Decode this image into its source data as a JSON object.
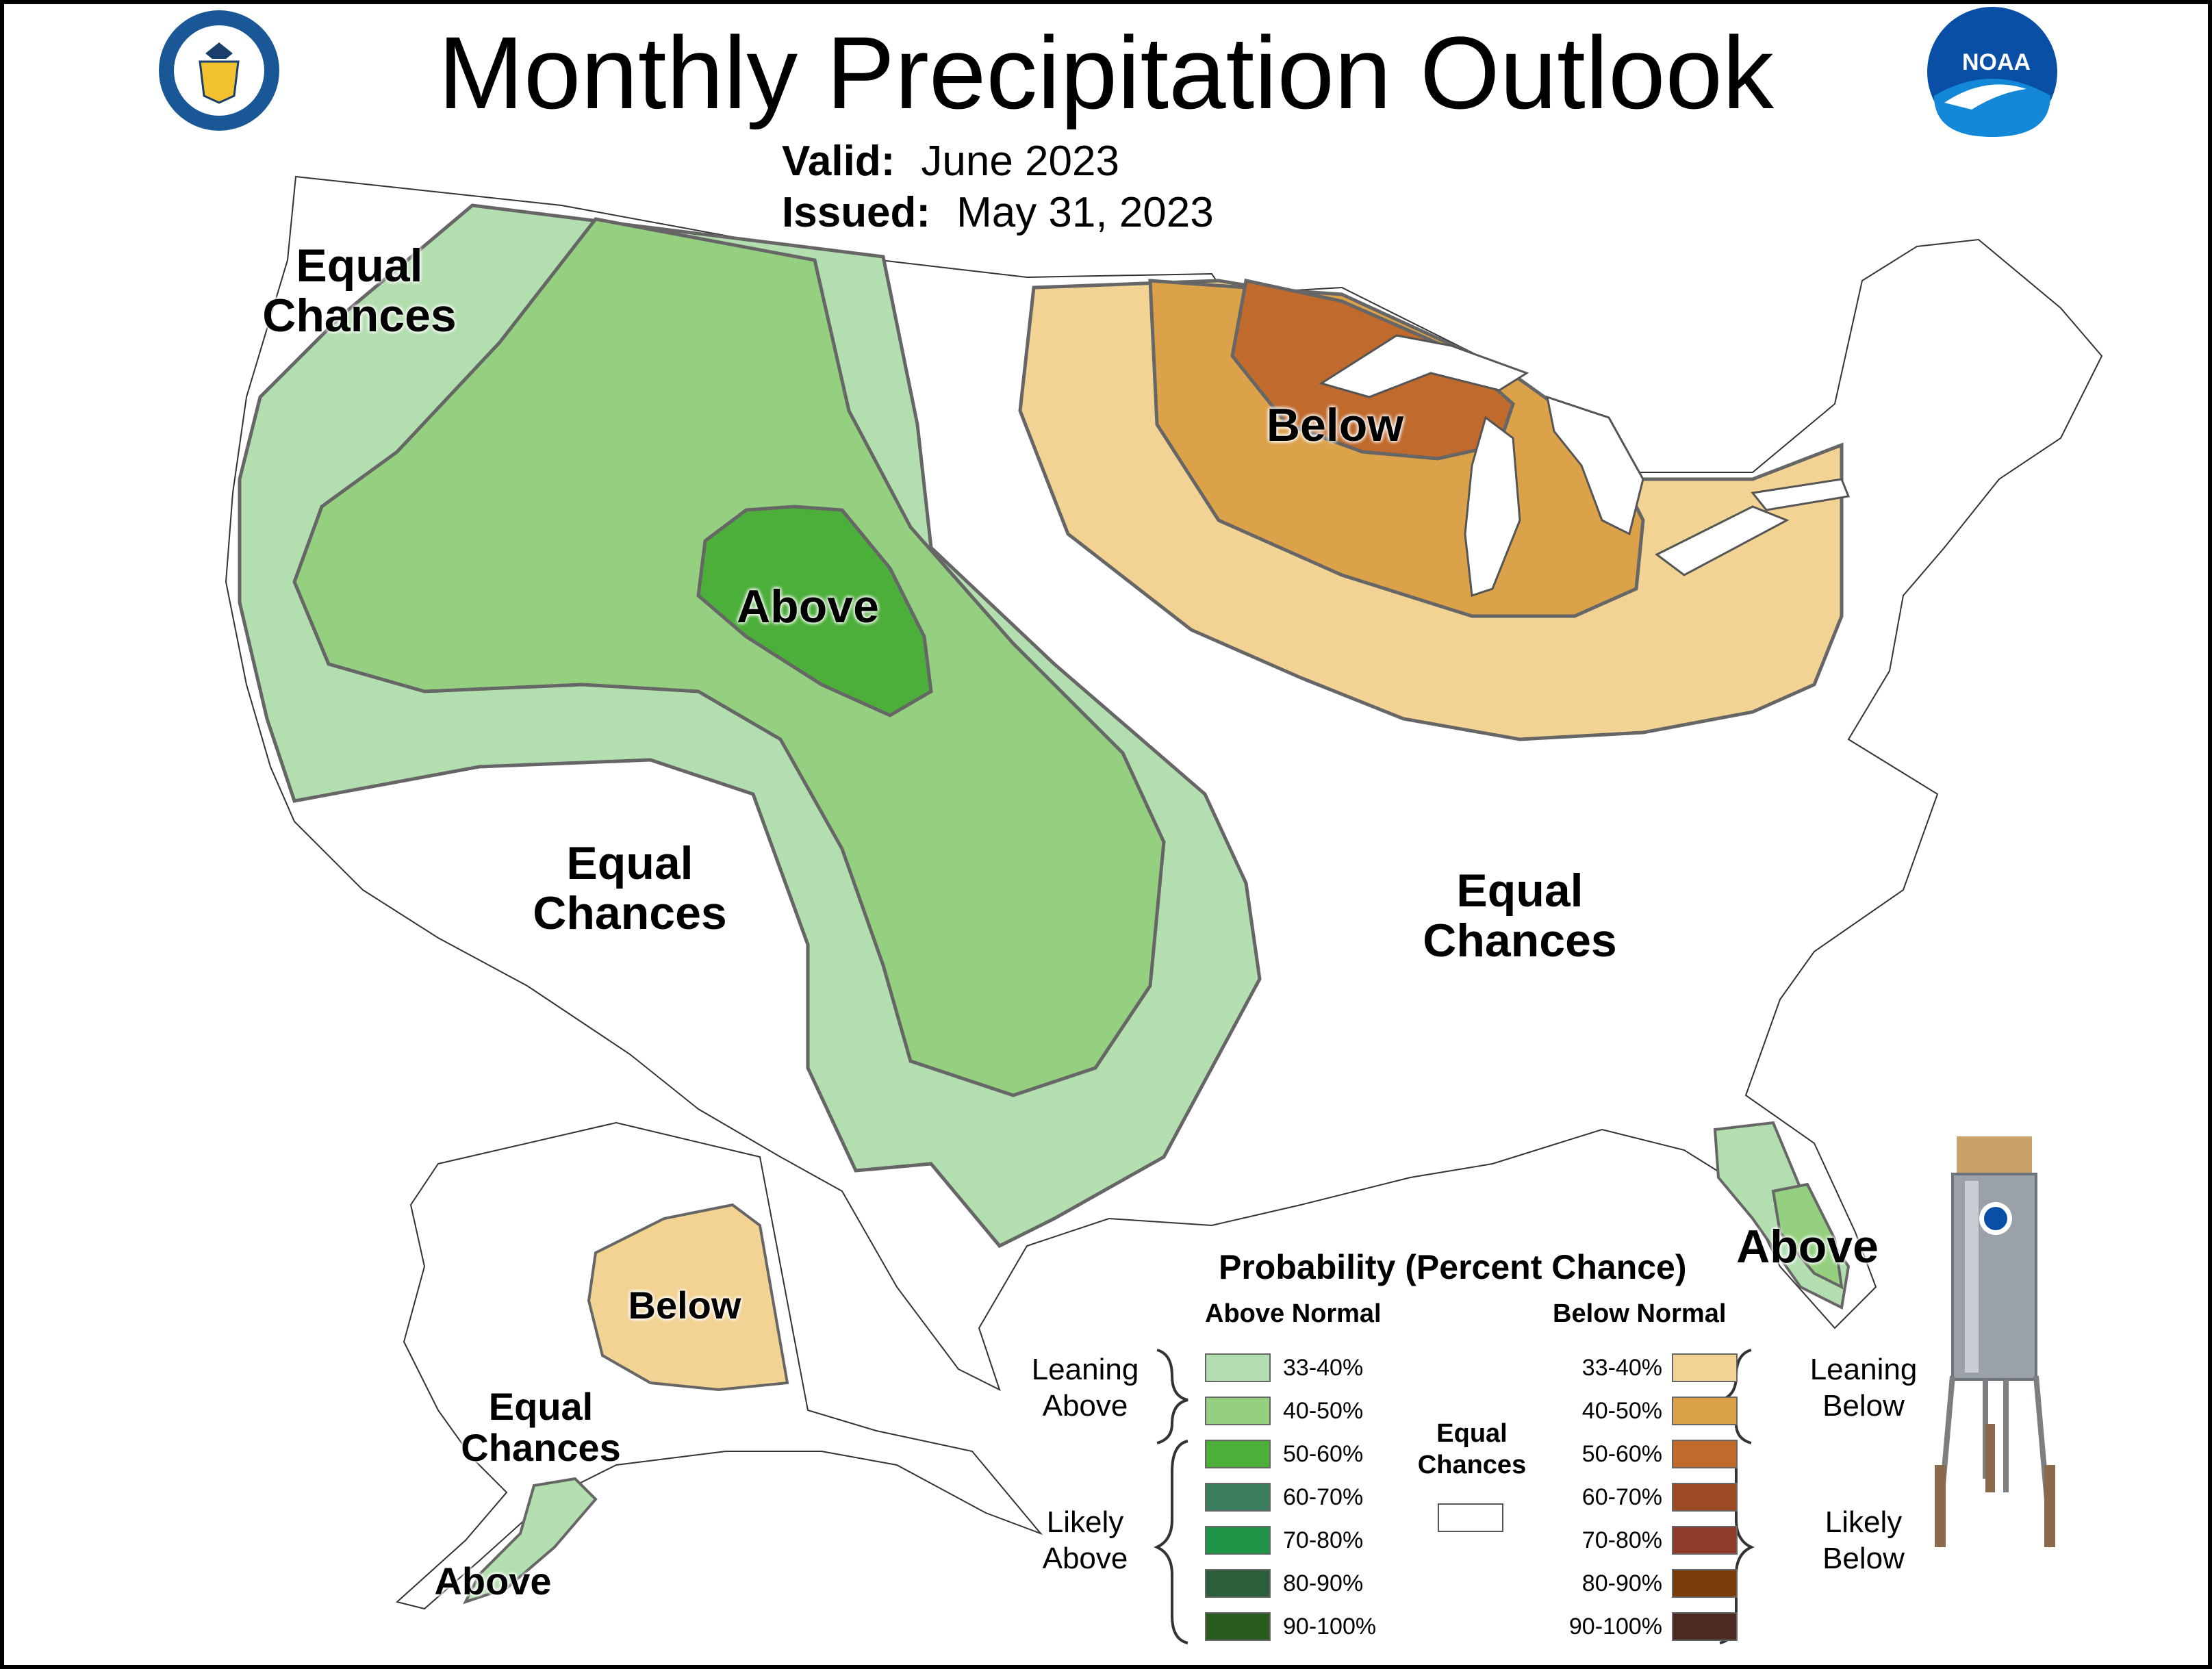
{
  "title": "Monthly Precipitation Outlook",
  "valid": {
    "label": "Valid:",
    "value": "June 2023"
  },
  "issued": {
    "label": "Issued:",
    "value": "May 31, 2023"
  },
  "logos": {
    "doc_seal": "department-of-commerce-seal",
    "noaa_text": "NOAA"
  },
  "regions": {
    "nw_equal": "Equal\nChances",
    "west_above": "Above",
    "sw_equal": "Equal\nChances",
    "greatlakes_below": "Below",
    "east_equal": "Equal\nChances",
    "florida_above": "Above",
    "alaska_below": "Below",
    "alaska_equal": "Equal\nChances",
    "alaska_above": "Above"
  },
  "legend": {
    "title": "Probability (Percent Chance)",
    "above_header": "Above Normal",
    "below_header": "Below Normal",
    "equal_label": "Equal\nChances",
    "leaning_above": "Leaning\nAbove",
    "likely_above": "Likely\nAbove",
    "leaning_below": "Leaning\nBelow",
    "likely_below": "Likely\nBelow",
    "bins": [
      "33-40%",
      "40-50%",
      "50-60%",
      "60-70%",
      "70-80%",
      "80-90%",
      "90-100%"
    ],
    "above_colors": [
      "#b3deaf",
      "#94d07f",
      "#4caf3a",
      "#3a7d5c",
      "#1e9447",
      "#2d5e3c",
      "#285c1e"
    ],
    "below_colors": [
      "#f2d393",
      "#dba24a",
      "#c06a2d",
      "#9c4a24",
      "#8f3b2b",
      "#7a3c08",
      "#4a2a22"
    ],
    "equal_color": "#ffffff"
  },
  "icons": {
    "rain_gauge": "rain-gauge-icon"
  }
}
